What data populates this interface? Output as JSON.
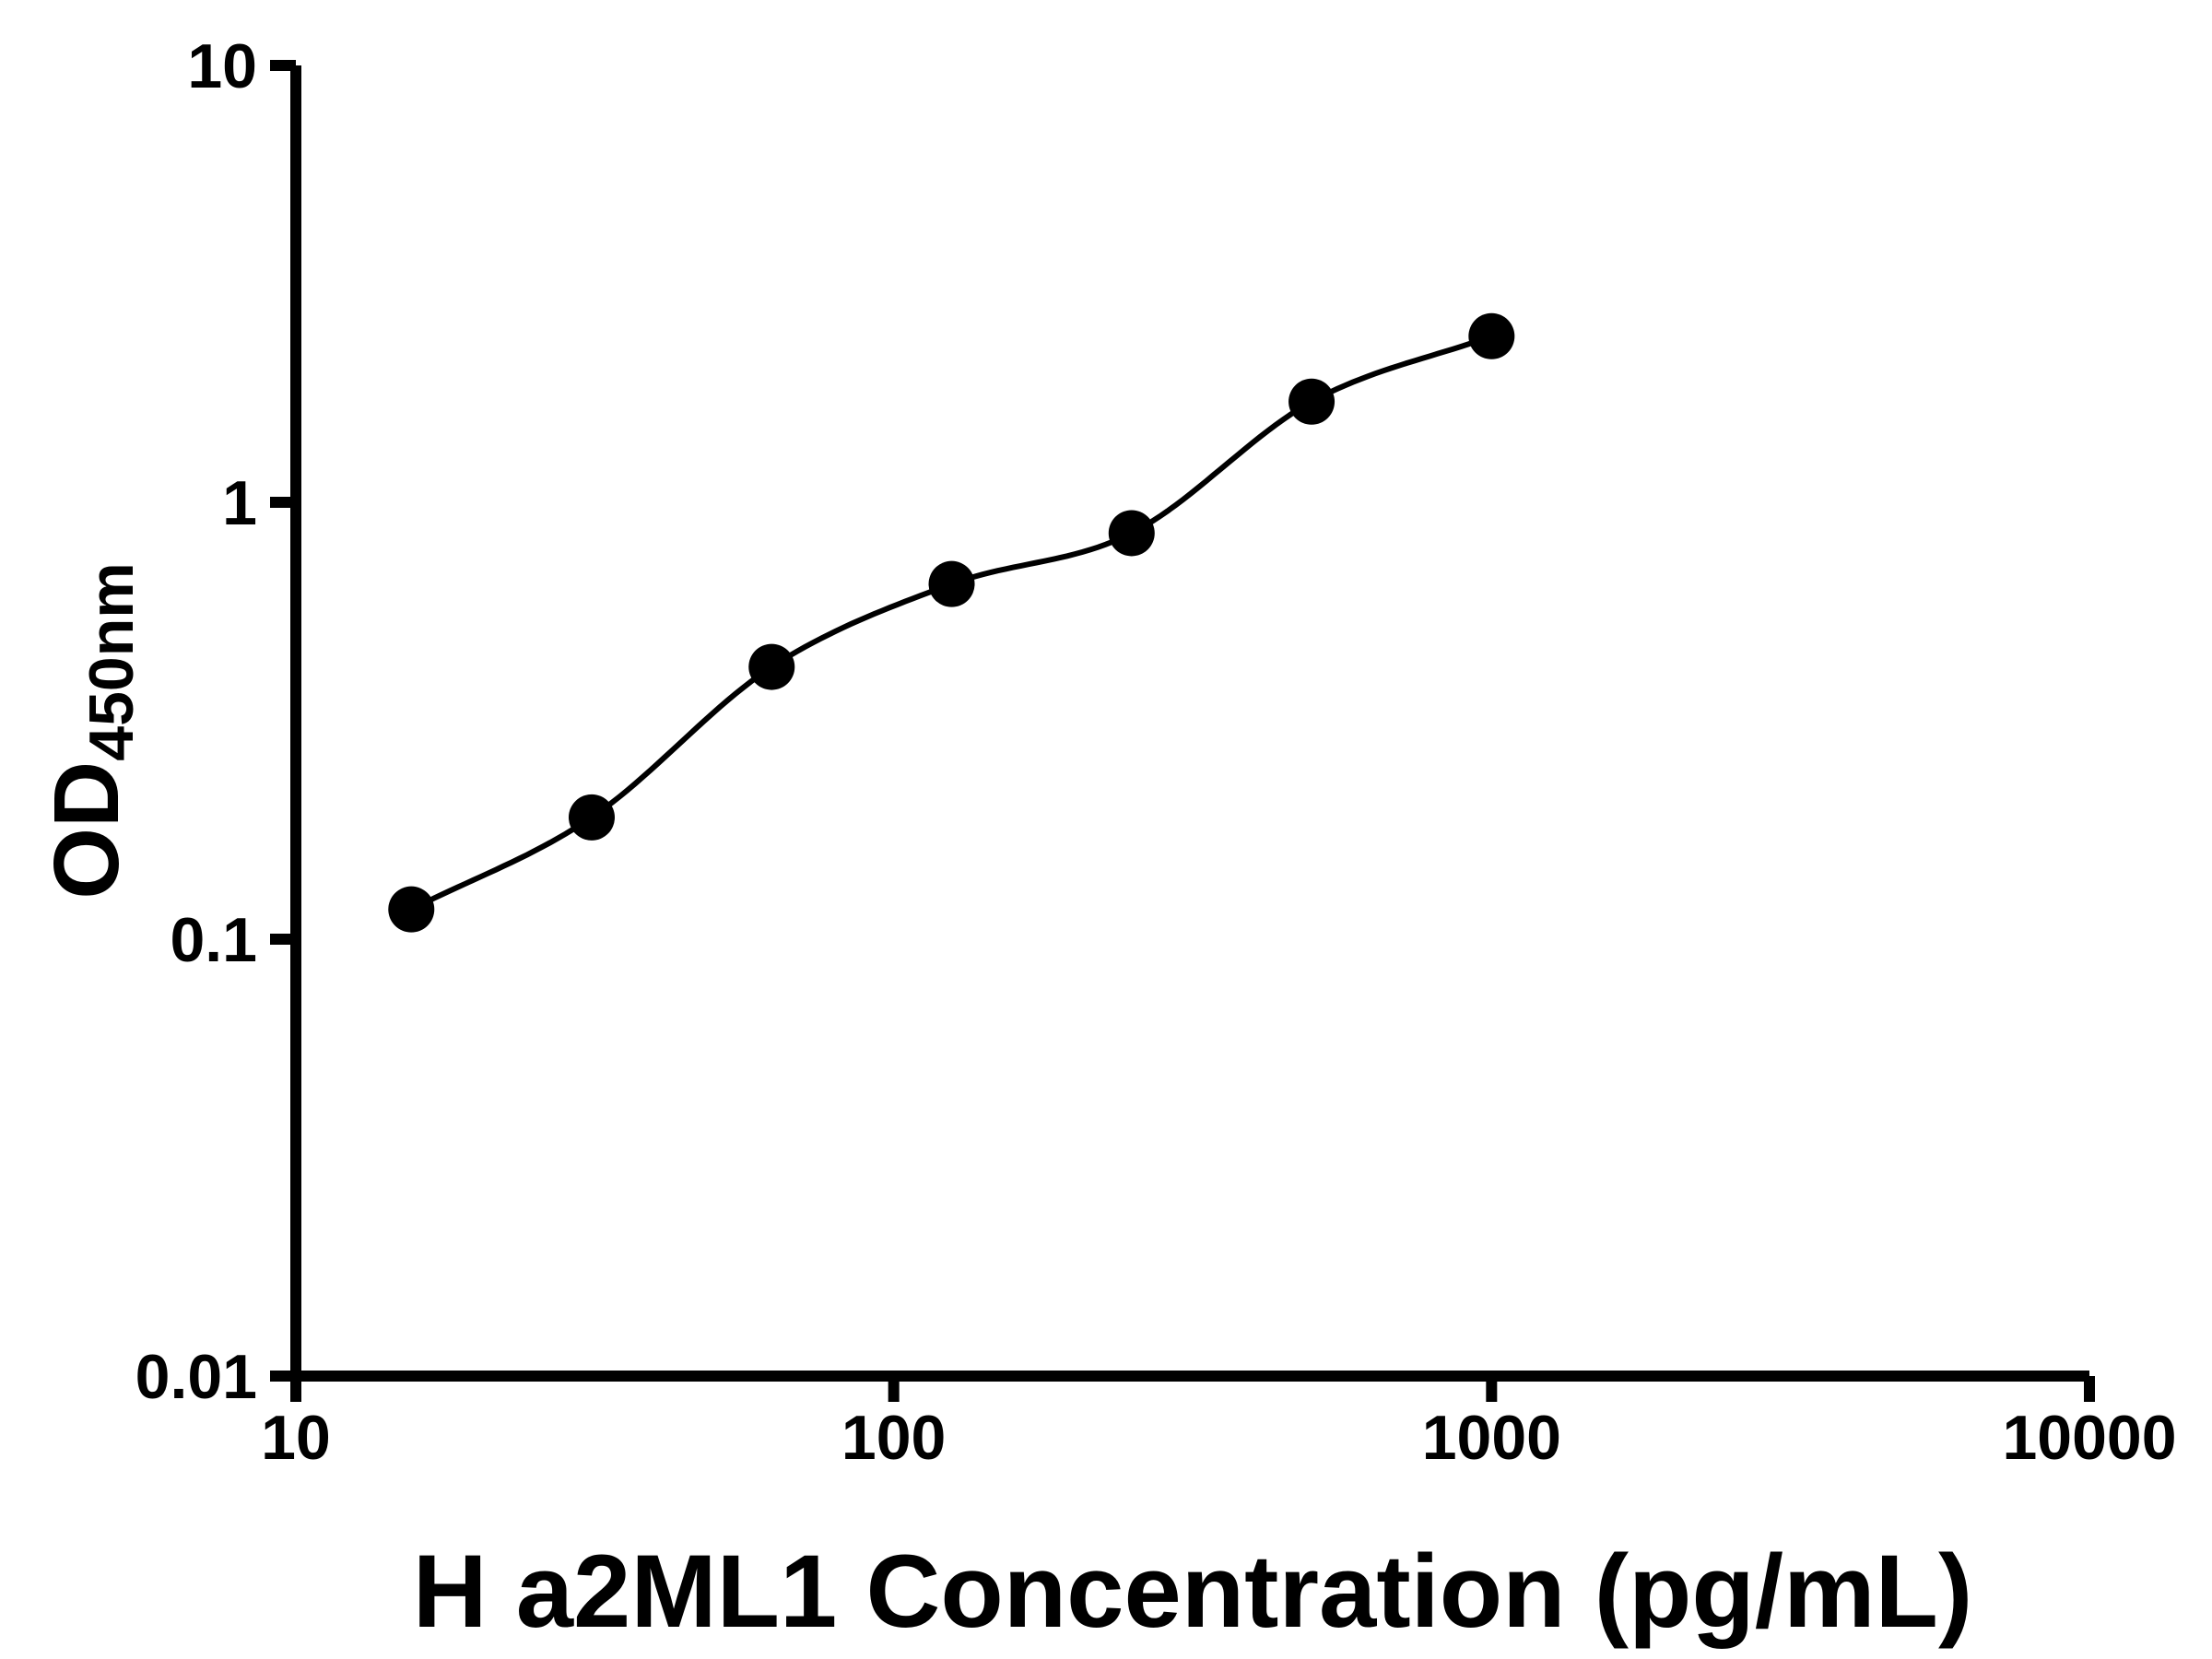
{
  "chart_data": {
    "type": "scatter",
    "title": "",
    "xlabel": "H a2ML1 Concentration (pg/mL)",
    "ylabel": "OD450nm",
    "ylabel_main": "OD",
    "ylabel_sub": "450nm",
    "x": [
      15.6,
      31.25,
      62.5,
      125,
      250,
      500,
      1000
    ],
    "y": [
      0.117,
      0.19,
      0.42,
      0.65,
      0.85,
      1.7,
      2.4
    ],
    "trendline": true,
    "xscale": "log",
    "yscale": "log",
    "xlim": [
      10,
      10000
    ],
    "ylim": [
      0.01,
      10
    ],
    "x_ticks": [
      10,
      100,
      1000,
      10000
    ],
    "x_tick_labels": [
      "10",
      "100",
      "1000",
      "10000"
    ],
    "y_ticks": [
      0.01,
      0.1,
      1,
      10
    ],
    "y_tick_labels": [
      "0.01",
      "0.1",
      "1",
      "10"
    ],
    "grid": false,
    "legend": "none",
    "marker_color": "#000000",
    "line_color": "#000000",
    "axis_color": "#000000",
    "background_color": "#ffffff"
  }
}
